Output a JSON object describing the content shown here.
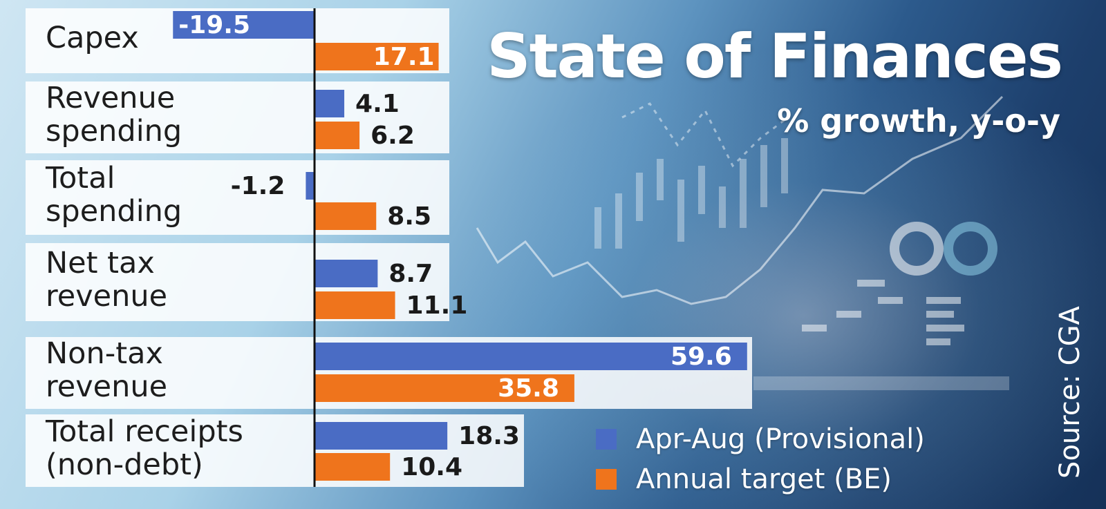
{
  "header": {
    "title": "State of Finances",
    "subtitle": "% growth, y-o-y"
  },
  "source": "Source: CGA",
  "colors": {
    "series1": "#4a6cc4",
    "series2": "#ef741c"
  },
  "legend": [
    {
      "label": "Apr-Aug (Provisional)",
      "color": "#4a6cc4"
    },
    {
      "label": "Annual target (BE)",
      "color": "#ef741c"
    }
  ],
  "chart_data": {
    "type": "bar",
    "orientation": "horizontal",
    "title": "State of Finances",
    "subtitle": "% growth, y-o-y",
    "categories": [
      "Capex",
      "Revenue\nspending",
      "Total\nspending",
      "Net tax\nrevenue",
      "Non-tax\nrevenue",
      "Total receipts\n(non-debt)"
    ],
    "series": [
      {
        "name": "Apr-Aug (Provisional)",
        "values": [
          -19.5,
          4.1,
          -1.2,
          8.7,
          59.6,
          18.3
        ]
      },
      {
        "name": "Annual target (BE)",
        "values": [
          17.1,
          6.2,
          8.5,
          11.1,
          35.8,
          10.4
        ]
      }
    ],
    "legend_position": "bottom-right",
    "grid": false
  }
}
